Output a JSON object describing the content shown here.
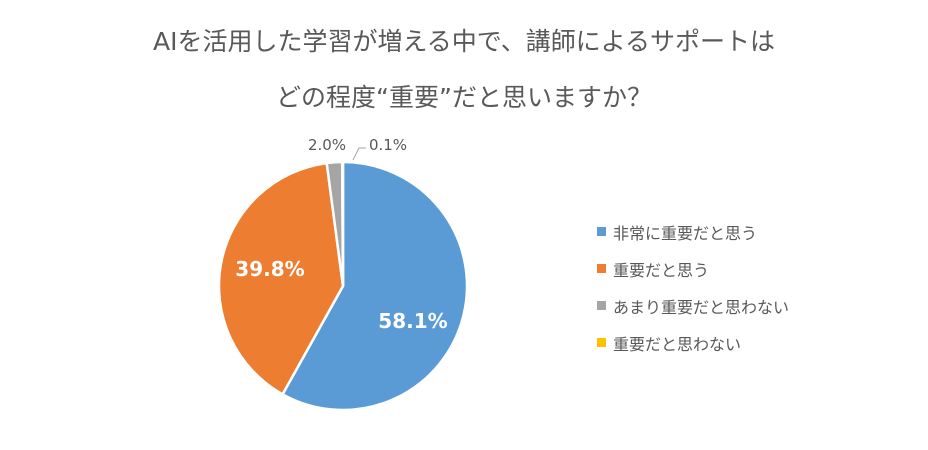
{
  "chart_data": {
    "type": "pie",
    "title": "AIを活用した学習が増える中で、講師によるサポートはどの程度“重要”だと思いますか？",
    "title_lines": [
      "AIを活用した学習が増える中で、講師によるサポートは",
      "どの程度“重要”だと思いますか？"
    ],
    "categories": [
      "非常に重要だと思う",
      "重要だと思う",
      "あまり重要だと思わない",
      "重要だと思わない"
    ],
    "values": [
      58.1,
      39.8,
      2.0,
      0.1
    ],
    "labels": [
      "58.1%",
      "39.8%",
      "2.0%",
      "0.1%"
    ],
    "colors": [
      "#5B9BD5",
      "#ED7D31",
      "#A5A5A5",
      "#FFC000"
    ],
    "legend_position": "right"
  }
}
